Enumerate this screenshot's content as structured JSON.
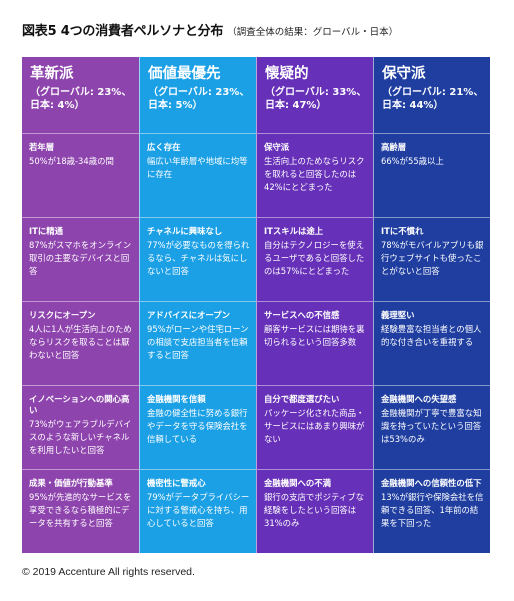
{
  "title": {
    "main": "図表5  4つの消費者ペルソナと分布",
    "sub": "（調査全体の結果：グローバル・日本）"
  },
  "columns": [
    {
      "name": "革新派",
      "share": "（グローバル: 23%、日本: 4%）",
      "color": "#8e44ad",
      "cells": [
        {
          "heading": "若年層",
          "text": "50%が18歳-34歳の間"
        },
        {
          "heading": "ITに精通",
          "text": "87%がスマホをオンライン取引の主要なデバイスと回答"
        },
        {
          "heading": "リスクにオープン",
          "text": "4人に1人が生活向上のためならリスクを取ることは厭わないと回答"
        },
        {
          "heading": "イノベーションへの関心高い",
          "text": "73%がウェアラブルデバイスのような新しいチャネルを利用したいと回答"
        },
        {
          "heading": "成果・価値が行動基準",
          "text": "95%が先進的なサービスを享受できるなら積極的にデータを共有すると回答"
        }
      ]
    },
    {
      "name": "価値最優先",
      "share": "（グローバル: 23%、日本: 5%）",
      "color": "#1ba0e6",
      "cells": [
        {
          "heading": "広く存在",
          "text": "幅広い年齢層や地域に均等に存在"
        },
        {
          "heading": "チャネルに興味なし",
          "text": "77%が必要なものを得られるなら、チャネルは気にしないと回答"
        },
        {
          "heading": "アドバイスにオープン",
          "text": "95%がローンや住宅ローンの相談で支店担当者を信頼すると回答"
        },
        {
          "heading": "金融機関を信頼",
          "text": "金融の健全性に努める銀行やデータを守る保険会社を信頼している"
        },
        {
          "heading": "機密性に警戒心",
          "text": "79%がデータプライバシーに対する警戒心を持ち、用心していると回答"
        }
      ]
    },
    {
      "name": "懐疑的",
      "share": "（グローバル: 33%、日本: 47%）",
      "color": "#6730b8",
      "cells": [
        {
          "heading": "保守派",
          "text": "生活向上のためならリスクを取れると回答したのは42%にとどまった"
        },
        {
          "heading": "ITスキルは途上",
          "text": "自分はテクノロジーを使えるユーザであると回答したのは57%にとどまった"
        },
        {
          "heading": "サービスへの不信感",
          "text": "顧客サービスには期待を裏切られるという回答多数"
        },
        {
          "heading": "自分で都度選びたい",
          "text": "パッケージ化された商品・サービスにはあまり興味がない"
        },
        {
          "heading": "金融機関への不満",
          "text": "銀行の支店でポジティブな経験をしたという回答は31%のみ"
        }
      ]
    },
    {
      "name": "保守派",
      "share": "（グローバル: 21%、日本: 44%）",
      "color": "#1f3ea0",
      "cells": [
        {
          "heading": "高齢層",
          "text": "66%が55歳以上"
        },
        {
          "heading": "ITに不慣れ",
          "text": "78%がモバイルアプリも銀行ウェブサイトも使ったことがないと回答"
        },
        {
          "heading": "義理堅い",
          "text": "経験豊富な担当者との個人的な付き合いを重視する"
        },
        {
          "heading": "金融機関への失望感",
          "text": "金融機関が丁寧で豊富な知識を持っていたという回答は53%のみ"
        },
        {
          "heading": "金融機関への信頼性の低下",
          "text": "13%が銀行や保険会社を信頼できる回答、1年前の結果を下回った"
        }
      ]
    }
  ],
  "footer": "© 2019 Accenture All rights reserved."
}
